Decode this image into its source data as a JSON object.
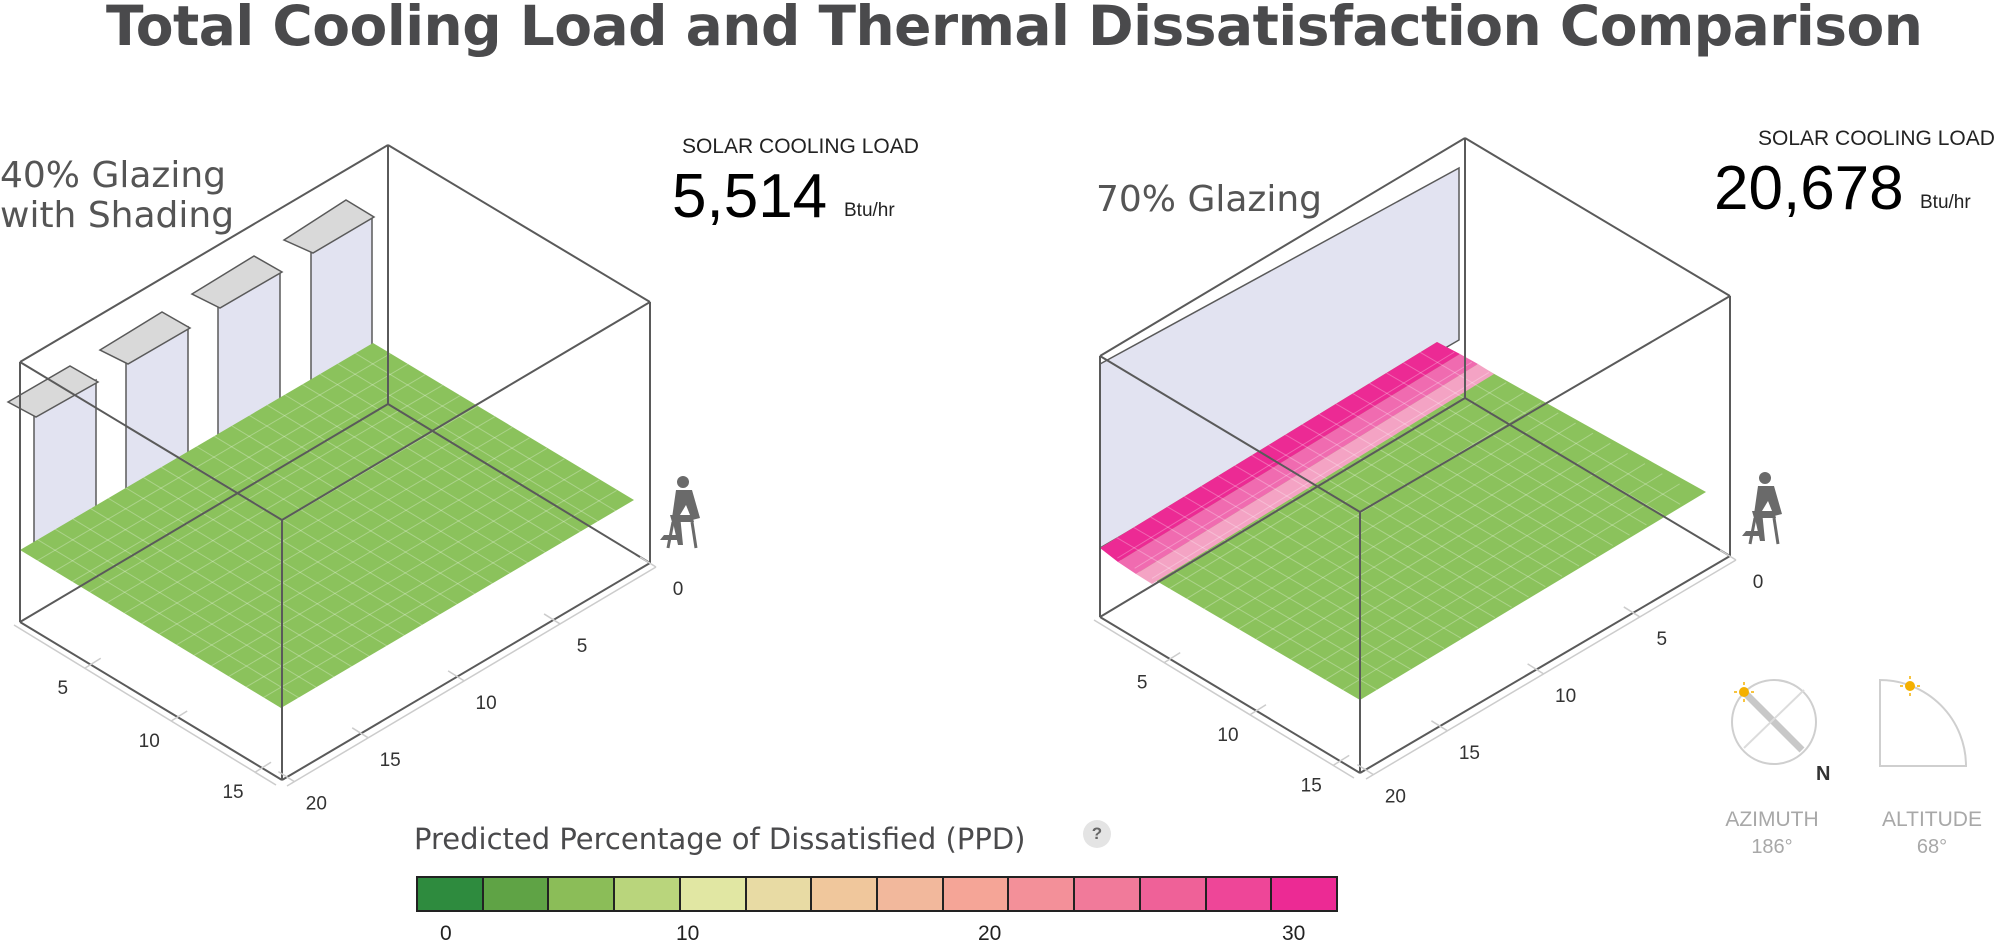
{
  "title": "Total Cooling Load and Thermal Dissatisfaction Comparison",
  "scenarios": [
    {
      "label_line1": "40% Glazing",
      "label_line2": "with Shading",
      "load_caption": "SOLAR COOLING LOAD",
      "load_value": "5,514",
      "load_unit": "Btu/hr",
      "depth_ticks": [
        "5",
        "10",
        "15"
      ],
      "width_ticks": [
        "0",
        "5",
        "10",
        "15",
        "20"
      ]
    },
    {
      "label_line1": "70% Glazing",
      "label_line2": "",
      "load_caption": "SOLAR COOLING LOAD",
      "load_value": "20,678",
      "load_unit": "Btu/hr",
      "depth_ticks": [
        "5",
        "10",
        "15"
      ],
      "width_ticks": [
        "0",
        "5",
        "10",
        "15",
        "20"
      ]
    }
  ],
  "sun": {
    "azimuth_label": "AZIMUTH",
    "azimuth_value": "186°",
    "altitude_label": "ALTITUDE",
    "altitude_value": "68°",
    "north_label": "N"
  },
  "legend": {
    "title": "Predicted Percentage of Dissatisfied (PPD)",
    "help_label": "?",
    "ticks": [
      "0",
      "10",
      "20",
      "30"
    ],
    "colors": [
      "#2e8b3e",
      "#5fa345",
      "#8bbd58",
      "#b9d57c",
      "#e1e7a3",
      "#e8dba4",
      "#f0c79c",
      "#f2b89c",
      "#f5a597",
      "#f39099",
      "#f17a9a",
      "#ef6198",
      "#ee4698",
      "#ec2a94"
    ]
  },
  "colors": {
    "floor_green": "#8bc25c",
    "glass": "#e2e3f1",
    "wall_line": "#5a5a5a",
    "person": "#6a6a6a",
    "hot_pink": "#ec2a94",
    "mid_pink": "#f06bb0",
    "light_pink": "#f4a3c4",
    "cream": "#ece7a3"
  }
}
